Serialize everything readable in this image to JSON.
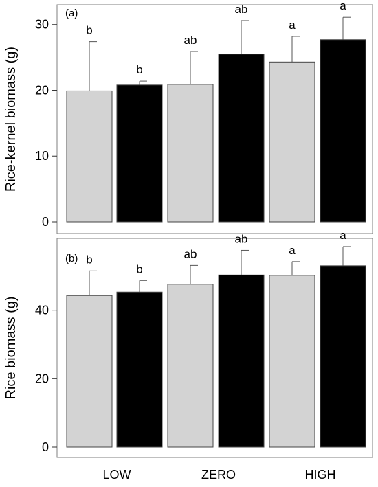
{
  "chart_data": [
    {
      "type": "bar",
      "panel_label": "(a)",
      "ylabel": "Rice-kernel biomass (g)",
      "ylim": [
        0,
        33
      ],
      "yticks": [
        0,
        10,
        20,
        30
      ],
      "categories": [
        "LOW",
        "ZERO",
        "HIGH"
      ],
      "series_colors": [
        "#d3d3d3",
        "#000000"
      ],
      "bars": [
        {
          "group": "LOW",
          "value": 19.9,
          "error": 7.5,
          "sig": "b"
        },
        {
          "group": "LOW",
          "value": 20.8,
          "error": 0.6,
          "sig": "b"
        },
        {
          "group": "ZERO",
          "value": 20.9,
          "error": 5.0,
          "sig": "ab"
        },
        {
          "group": "ZERO",
          "value": 25.5,
          "error": 5.1,
          "sig": "ab"
        },
        {
          "group": "HIGH",
          "value": 24.3,
          "error": 3.9,
          "sig": "a"
        },
        {
          "group": "HIGH",
          "value": 27.7,
          "error": 3.4,
          "sig": "a"
        }
      ],
      "grid": false
    },
    {
      "type": "bar",
      "panel_label": "(b)",
      "ylabel": "Rice biomass (g)",
      "ylim": [
        0,
        61
      ],
      "yticks": [
        0,
        20,
        40
      ],
      "categories": [
        "LOW",
        "ZERO",
        "HIGH"
      ],
      "series_colors": [
        "#d3d3d3",
        "#000000"
      ],
      "bars": [
        {
          "group": "LOW",
          "value": 44.3,
          "error": 7.2,
          "sig": "b"
        },
        {
          "group": "LOW",
          "value": 45.3,
          "error": 3.4,
          "sig": "b"
        },
        {
          "group": "ZERO",
          "value": 47.6,
          "error": 5.5,
          "sig": "ab"
        },
        {
          "group": "ZERO",
          "value": 50.3,
          "error": 7.2,
          "sig": "ab"
        },
        {
          "group": "HIGH",
          "value": 50.2,
          "error": 4.0,
          "sig": "a"
        },
        {
          "group": "HIGH",
          "value": 53.0,
          "error": 5.6,
          "sig": "a"
        }
      ],
      "grid": false
    }
  ]
}
